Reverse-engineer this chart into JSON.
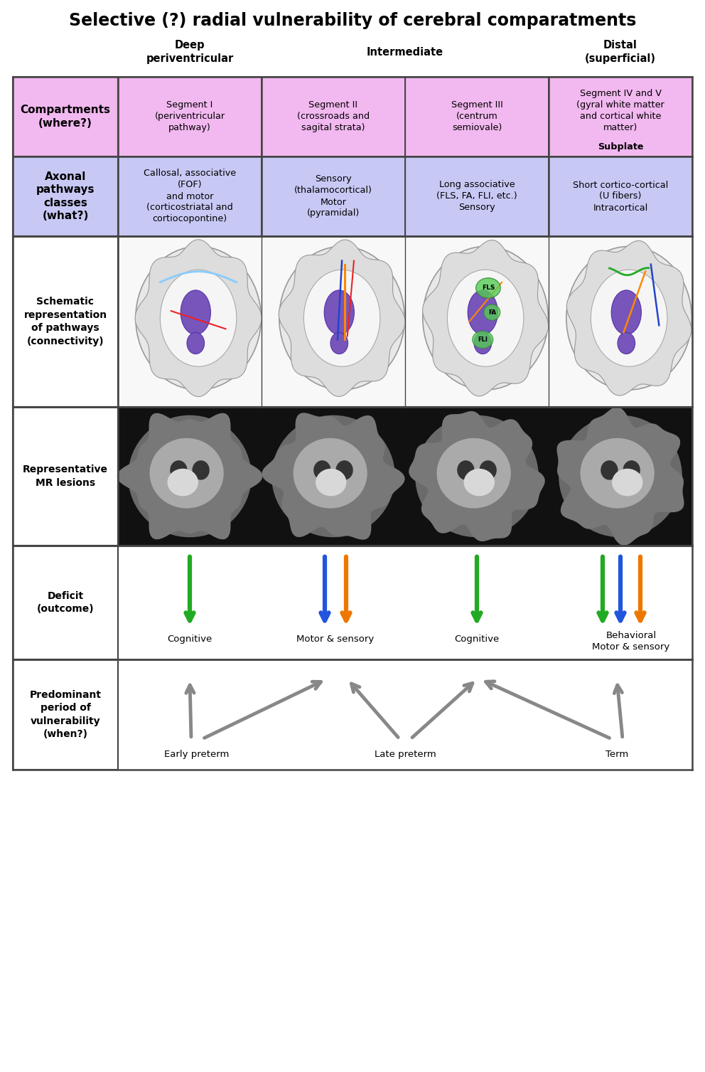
{
  "title": "Selective (?) radial vulnerability of cerebral comparatments",
  "title_fontsize": 17,
  "row1_cells": [
    "Segment I\n(periventricular\npathway)",
    "Segment II\n(crossroads and\nsagital strata)",
    "Segment III\n(centrum\nsemiovale)",
    "Segment IV and V\n(gyral white matter\nand cortical white\nmatter)"
  ],
  "row2_cells": [
    "Callosal, associative\n(FOF)\nand motor\n(corticostriatal and\ncortiocopontine)",
    "Sensory\n(thalamocortical)\nMotor\n(pyramidal)",
    "Long associative\n(FLS, FA, FLI, etc.)\nSensory",
    "Short cortico-cortical\n(U fibers)\nIntracortical"
  ],
  "row1_bg": "#f2b8f0",
  "row2_bg": "#c8c8f5",
  "label_bg1": "#f2b8f0",
  "label_bg2": "#c8c8f5",
  "bg_color": "#ffffff",
  "border_color": "#444444",
  "green": "#22aa22",
  "blue": "#2255dd",
  "orange": "#ee7700",
  "gray": "#888888",
  "deficit_outcomes": [
    "Cognitive",
    "Motor & sensory",
    "Cognitive",
    "Behavioral\nMotor & sensory"
  ],
  "vulnerability_periods": [
    "Early preterm",
    "Late preterm",
    "Term"
  ]
}
